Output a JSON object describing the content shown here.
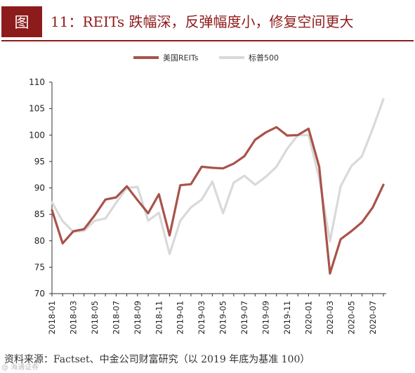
{
  "header": {
    "figure_label": "图",
    "title": "11：REITs 跌幅深，反弹幅度小，修复空间更大"
  },
  "legend": [
    {
      "label": "美国REITs",
      "color": "#a9524a"
    },
    {
      "label": "标普500",
      "color": "#d9d9d9"
    }
  ],
  "footer": {
    "source": "资料来源：Factset、中金公司财富研究（以 2019 年底为基准 100）",
    "watermark": "@ 海通证券"
  },
  "chart_data": {
    "type": "line",
    "ylim": [
      70,
      110
    ],
    "yticks": [
      70,
      75,
      80,
      85,
      90,
      95,
      100,
      105,
      110
    ],
    "x": [
      "2018-01",
      "2018-02",
      "2018-03",
      "2018-04",
      "2018-05",
      "2018-06",
      "2018-07",
      "2018-08",
      "2018-09",
      "2018-10",
      "2018-11",
      "2018-12",
      "2019-01",
      "2019-02",
      "2019-03",
      "2019-04",
      "2019-05",
      "2019-06",
      "2019-07",
      "2019-08",
      "2019-09",
      "2019-10",
      "2019-11",
      "2019-12",
      "2020-01",
      "2020-02",
      "2020-03",
      "2020-04",
      "2020-05",
      "2020-06",
      "2020-07",
      "2020-08"
    ],
    "xtick_labels": [
      "2018-01",
      "2018-03",
      "2018-05",
      "2018-07",
      "2018-09",
      "2018-11",
      "2019-01",
      "2019-03",
      "2019-05",
      "2019-07",
      "2019-09",
      "2019-11",
      "2020-01",
      "2020-03",
      "2020-05",
      "2020-07"
    ],
    "series": [
      {
        "name": "美国REITs",
        "color": "#a9524a",
        "width": 3.2,
        "values": [
          85.8,
          79.5,
          81.8,
          82.2,
          84.8,
          87.8,
          88.2,
          90.3,
          87.7,
          85.2,
          88.8,
          81.0,
          90.5,
          90.7,
          94.0,
          93.8,
          93.7,
          94.6,
          96.0,
          99.1,
          100.5,
          101.5,
          99.9,
          100.0,
          101.2,
          94.0,
          73.8,
          80.3,
          81.8,
          83.5,
          86.3,
          90.6
        ]
      },
      {
        "name": "标普500",
        "color": "#d9d9d9",
        "width": 3.2,
        "values": [
          87.3,
          83.7,
          81.7,
          81.9,
          83.8,
          84.2,
          87.2,
          90.0,
          90.2,
          83.8,
          85.3,
          77.5,
          83.8,
          86.3,
          87.8,
          91.2,
          85.2,
          91.0,
          92.3,
          90.6,
          92.1,
          94.0,
          97.4,
          100.0,
          100.0,
          91.8,
          79.9,
          90.3,
          94.1,
          96.0,
          101.2,
          106.8
        ]
      }
    ]
  }
}
